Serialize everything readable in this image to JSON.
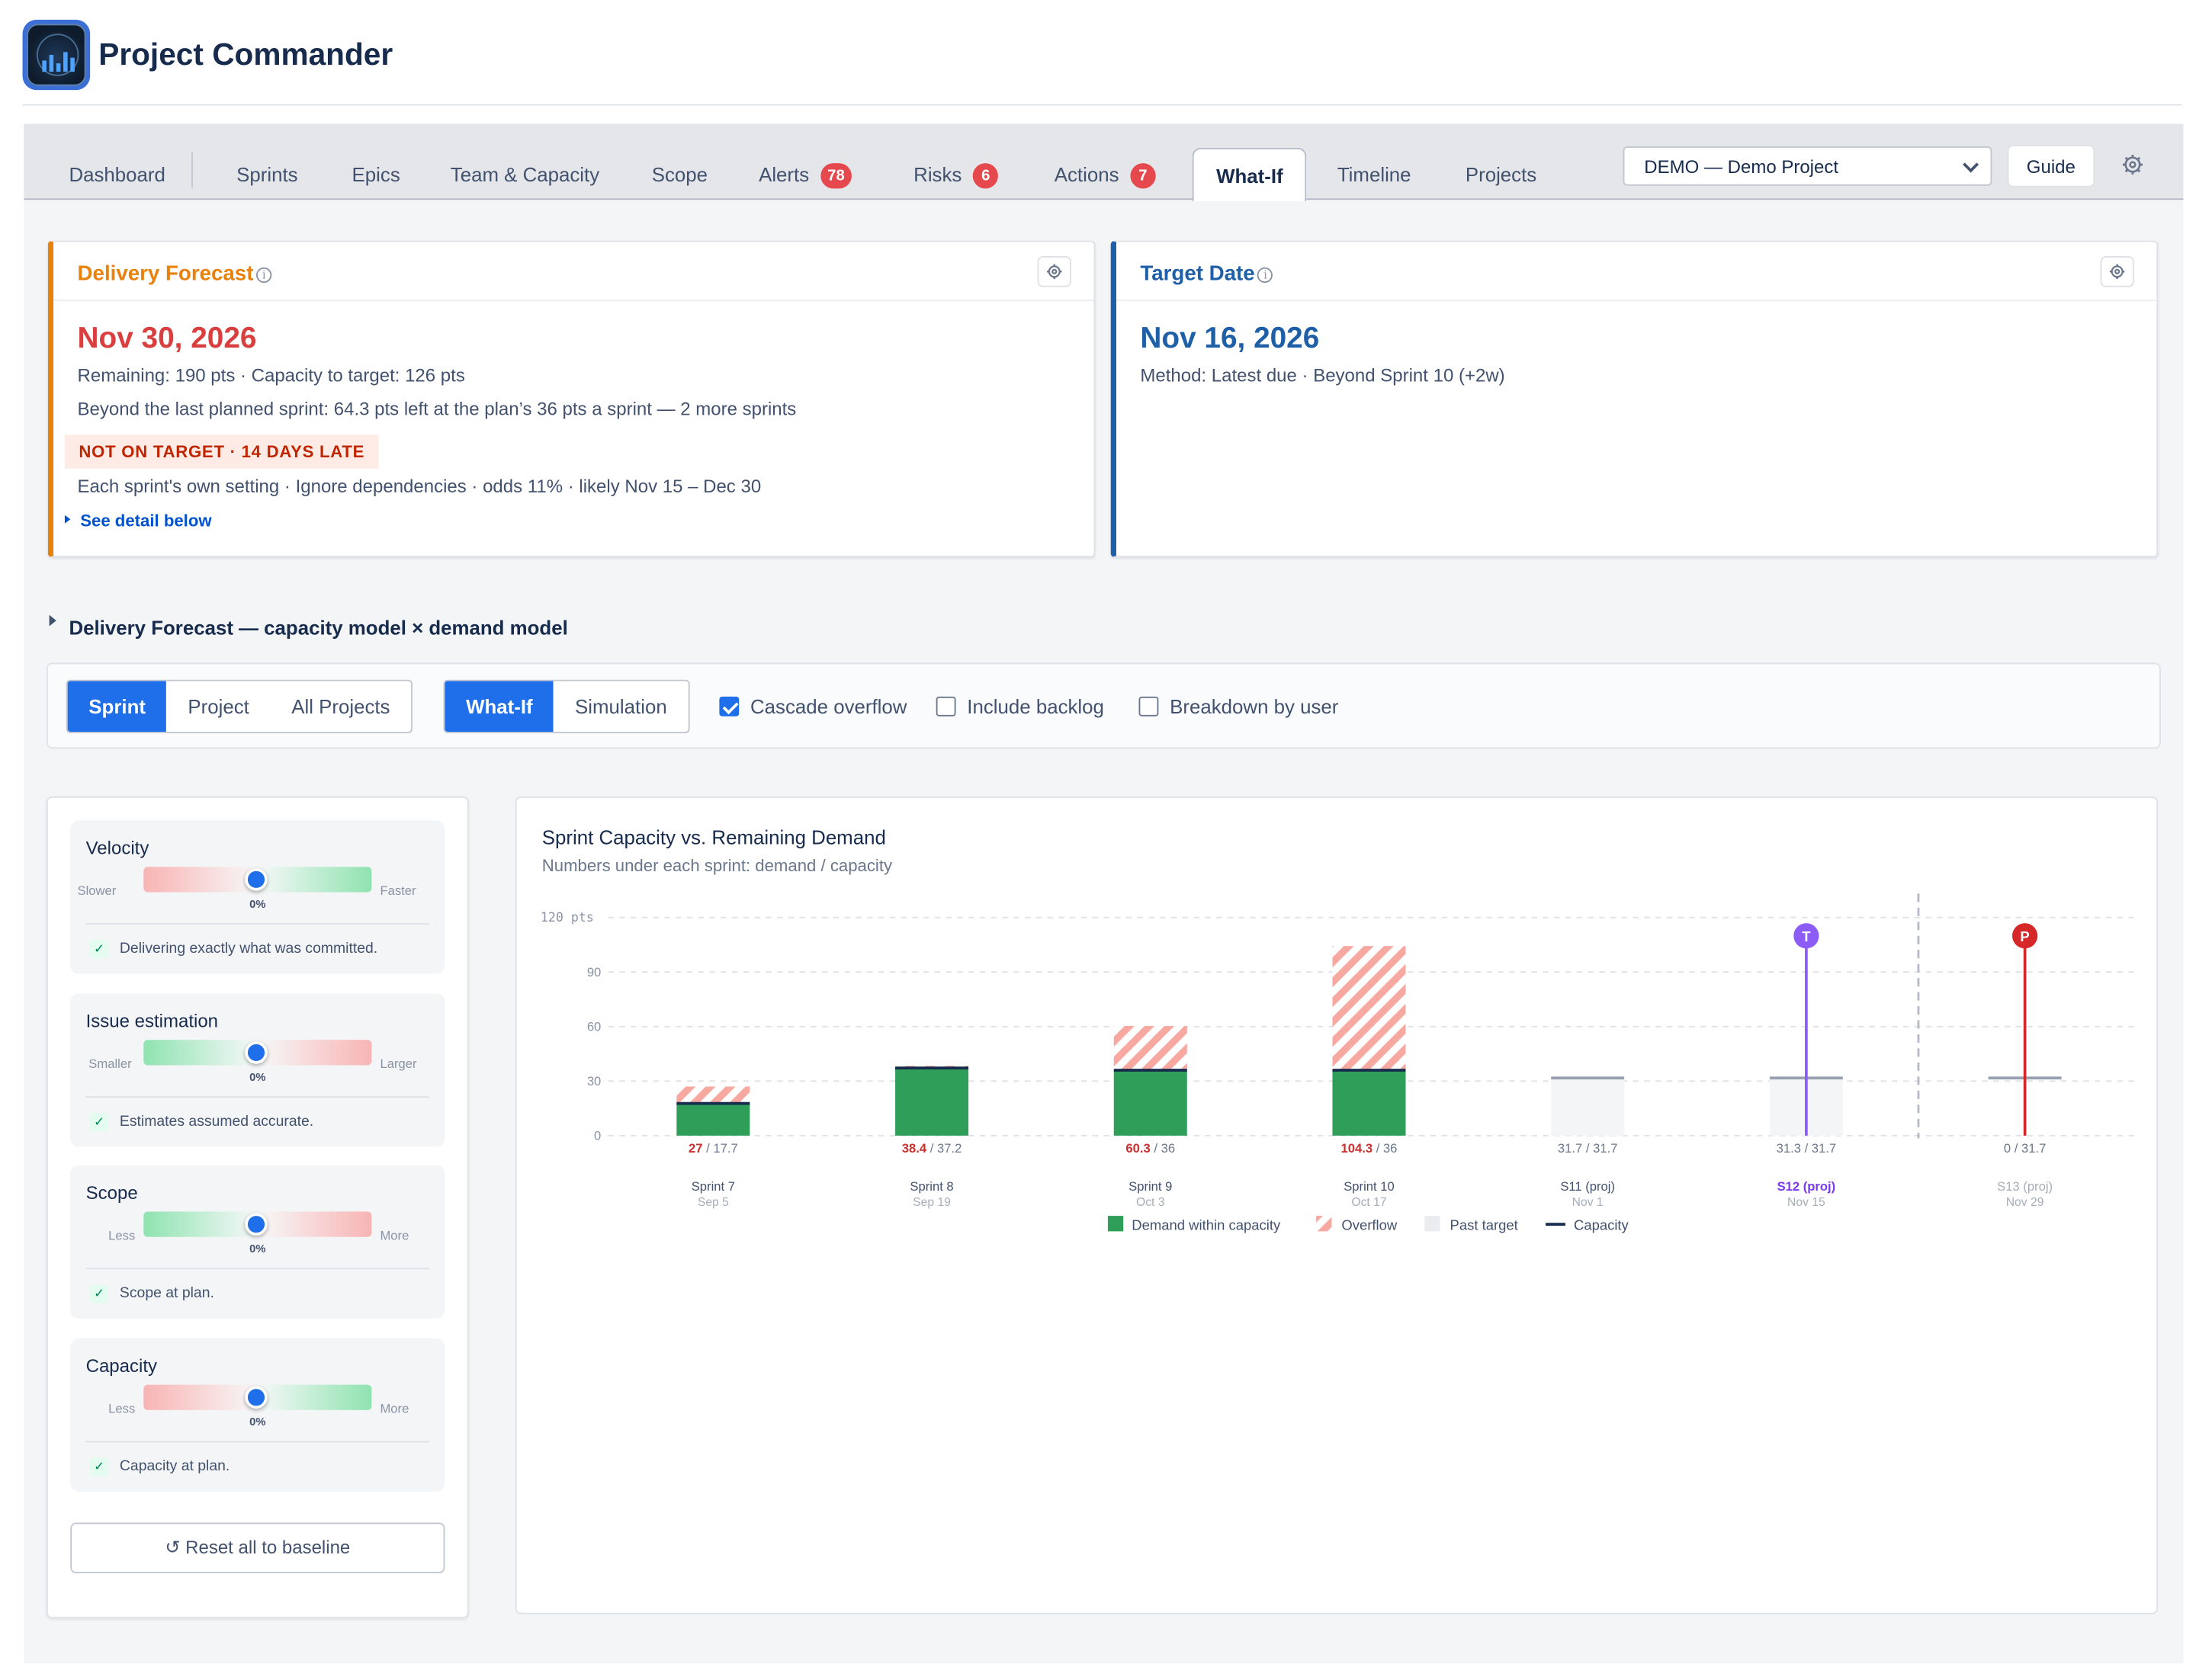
{
  "app": {
    "title": "Project Commander",
    "logo_icon": "radar-chart-logo"
  },
  "tabs": [
    {
      "label": "Dashboard"
    },
    {
      "label": "Sprints"
    },
    {
      "label": "Epics"
    },
    {
      "label": "Team & Capacity"
    },
    {
      "label": "Scope"
    },
    {
      "label": "Alerts",
      "badge": "78"
    },
    {
      "label": "Risks",
      "badge": "6"
    },
    {
      "label": "Actions",
      "badge": "7"
    },
    {
      "label": "What-If",
      "active": true
    },
    {
      "label": "Timeline"
    },
    {
      "label": "Projects"
    }
  ],
  "toolbar": {
    "project_selected": "DEMO — Demo Project",
    "guide_label": "Guide",
    "settings_icon": "gear-icon"
  },
  "delivery_forecast": {
    "title": "Delivery Forecast",
    "date": "Nov 30, 2026",
    "line1": "Remaining: 190 pts · Capacity to target: 126 pts",
    "line2": "Beyond the last planned sprint: 64.3 pts left at the plan’s 36 pts a sprint — 2 more sprints",
    "status": "NOT ON TARGET · 14 DAYS LATE",
    "line3": "Each sprint's own setting · Ignore dependencies · odds 11% · likely Nov 15 – Dec 30",
    "link": "See detail below",
    "accent": "#e8820c"
  },
  "target_date": {
    "title": "Target Date",
    "date": "Nov 16, 2026",
    "line1": "Method: Latest due · Beyond Sprint 10 (+2w)",
    "accent": "#1f5fa8"
  },
  "section_title": "Delivery Forecast — capacity model × demand model",
  "controls": {
    "scope_toggle": [
      "Sprint",
      "Project",
      "All Projects"
    ],
    "scope_selected": "Sprint",
    "mode_toggle": [
      "What-If",
      "Simulation"
    ],
    "mode_selected": "What-If",
    "cascade_overflow": {
      "label": "Cascade overflow",
      "checked": true
    },
    "include_backlog": {
      "label": "Include backlog",
      "checked": false
    },
    "breakdown_by_user": {
      "label": "Breakdown by user",
      "checked": false
    }
  },
  "sliders": [
    {
      "name": "Velocity",
      "left_label": "Slower",
      "right_label": "Faster",
      "value": "0%",
      "note": "Delivering exactly what was committed.",
      "gradient": "red-green"
    },
    {
      "name": "Issue estimation",
      "left_label": "Smaller",
      "right_label": "Larger",
      "value": "0%",
      "note": "Estimates assumed accurate.",
      "gradient": "green-red"
    },
    {
      "name": "Scope",
      "left_label": "Less",
      "right_label": "More",
      "value": "0%",
      "note": "Scope at plan.",
      "gradient": "green-red"
    },
    {
      "name": "Capacity",
      "left_label": "Less",
      "right_label": "More",
      "value": "0%",
      "note": "Capacity at plan.",
      "gradient": "red-green"
    }
  ],
  "reset_label": "↺ Reset all to baseline",
  "chart_data": {
    "type": "bar",
    "title": "Sprint Capacity vs. Remaining Demand",
    "subtitle": "Numbers under each sprint: demand / capacity",
    "ylabel": "pts",
    "ylim": [
      0,
      120
    ],
    "yticks": [
      0,
      30,
      60,
      90,
      120
    ],
    "sprints": [
      {
        "name": "Sprint 7",
        "date": "Sep 5",
        "demand": 27,
        "capacity": 17.7,
        "demand_label": "27",
        "capacity_label": "17.7",
        "kind": "planned"
      },
      {
        "name": "Sprint 8",
        "date": "Sep 19",
        "demand": 38.4,
        "capacity": 37.2,
        "demand_label": "38.4",
        "capacity_label": "37.2",
        "kind": "planned"
      },
      {
        "name": "Sprint 9",
        "date": "Oct 3",
        "demand": 60.3,
        "capacity": 36,
        "demand_label": "60.3",
        "capacity_label": "36",
        "kind": "planned"
      },
      {
        "name": "Sprint 10",
        "date": "Oct 17",
        "demand": 104.3,
        "capacity": 36,
        "demand_label": "104.3",
        "capacity_label": "36",
        "kind": "planned"
      },
      {
        "name": "S11 (proj)",
        "date": "Nov 1",
        "demand": 31.7,
        "capacity": 31.7,
        "demand_label": "31.7",
        "capacity_label": "31.7",
        "kind": "projected"
      },
      {
        "name": "S12 (proj)",
        "date": "Nov 15",
        "demand": 31.3,
        "capacity": 31.7,
        "demand_label": "31.3",
        "capacity_label": "31.7",
        "kind": "projected-target",
        "marker": "T"
      },
      {
        "name": "S13 (proj)",
        "date": "Nov 29",
        "demand": 0,
        "capacity": 31.7,
        "demand_label": "0",
        "capacity_label": "31.7",
        "kind": "projected-past",
        "marker": "P"
      }
    ],
    "legend": [
      "Demand within capacity",
      "Overflow",
      "Past target",
      "Capacity"
    ],
    "legend_placement": "bottom-center",
    "grid": true,
    "colors": {
      "within": "#2e9e58",
      "overflow": "#f7a8a0",
      "past_target": "#ebecf0",
      "capacity": "#172b4d",
      "target_marker": "#8b5cf6",
      "projected_marker": "#d62828"
    }
  }
}
